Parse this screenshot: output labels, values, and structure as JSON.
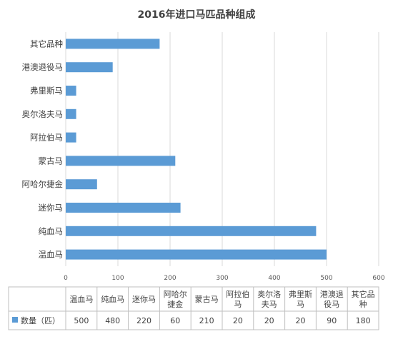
{
  "chart_data": {
    "type": "bar",
    "orientation": "horizontal",
    "title": "2016年进口马匹品种组成",
    "categories": [
      "温血马",
      "纯血马",
      "迷你马",
      "阿哈尔捷金",
      "蒙古马",
      "阿拉伯马",
      "奥尔洛夫马",
      "弗里斯马",
      "港澳退役马",
      "其它品种"
    ],
    "table_headers": [
      [
        "温血马"
      ],
      [
        "纯血马"
      ],
      [
        "迷你马"
      ],
      [
        "阿哈尔",
        "捷金"
      ],
      [
        "蒙古马"
      ],
      [
        "阿拉伯",
        "马"
      ],
      [
        "奥尔洛",
        "夫马"
      ],
      [
        "弗里斯",
        "马"
      ],
      [
        "港澳退",
        "役马"
      ],
      [
        "其它品",
        "种"
      ]
    ],
    "series": [
      {
        "name": "数量（匹）",
        "values": [
          500,
          480,
          220,
          60,
          210,
          20,
          20,
          20,
          90,
          180
        ],
        "color": "#5b9bd5"
      }
    ],
    "xlim": [
      0,
      600
    ],
    "xticks": [
      0,
      100,
      200,
      300,
      400,
      500,
      600
    ],
    "grid": true,
    "legend": "data-table"
  }
}
